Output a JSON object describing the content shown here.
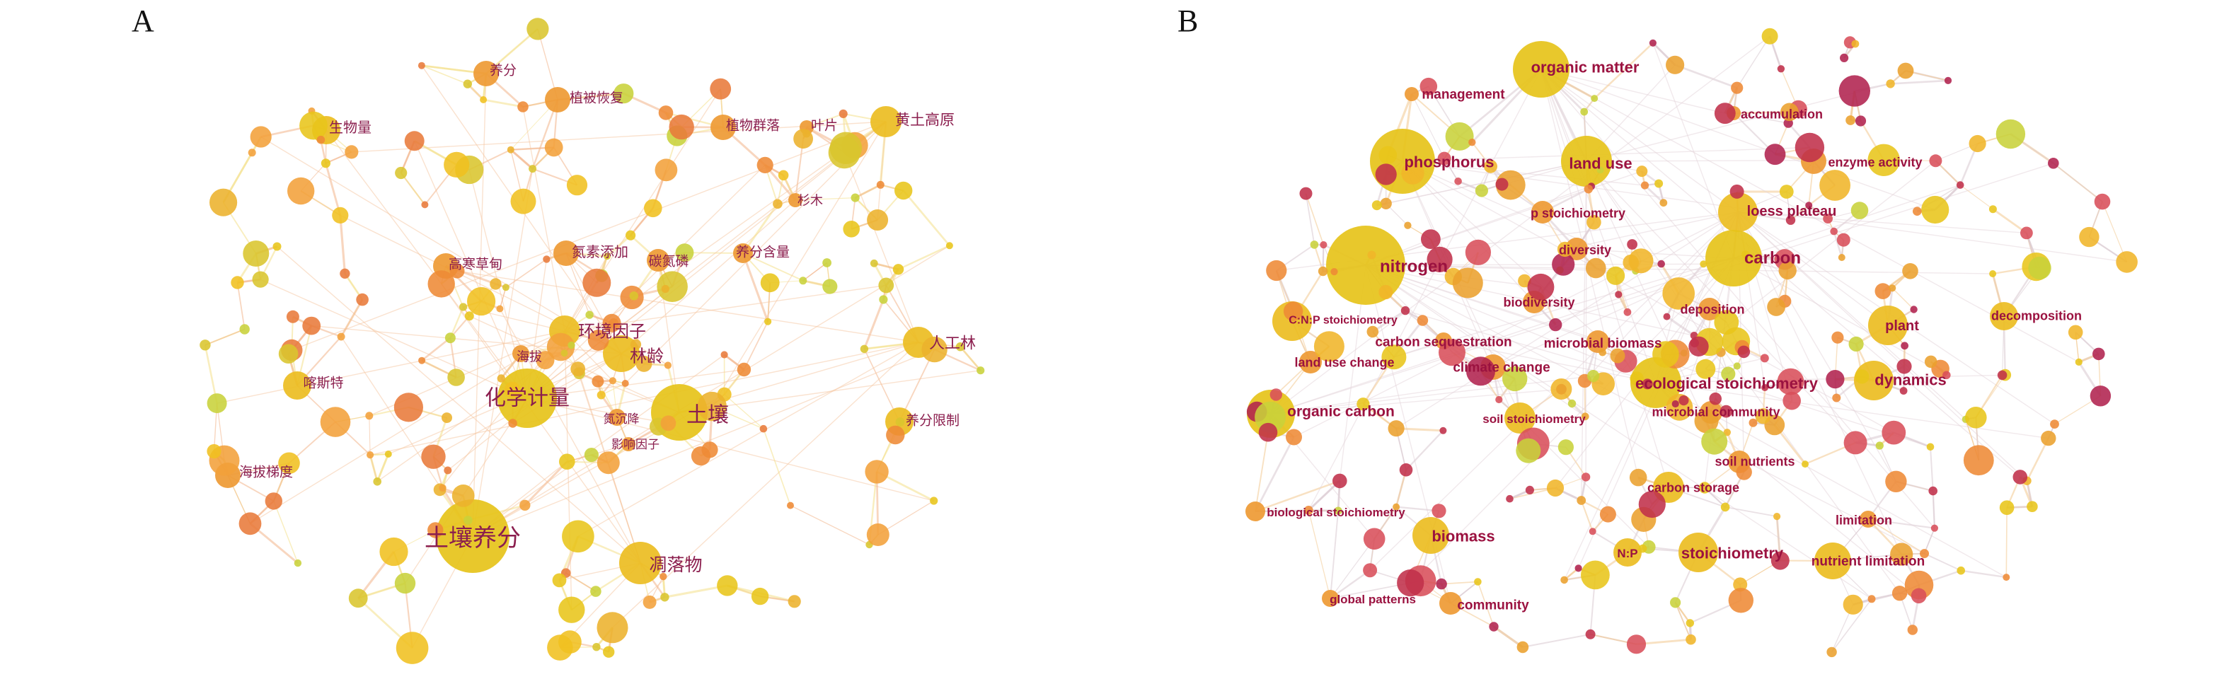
{
  "panels": [
    {
      "letter": "A",
      "keywords": [
        {
          "id": "tr",
          "text": "土壤养分"
        },
        {
          "id": "hx",
          "text": "化学计量"
        },
        {
          "id": "tu",
          "text": "土壤"
        },
        {
          "id": "dl",
          "text": "凋落物"
        },
        {
          "id": "hj",
          "text": "环境因子"
        },
        {
          "id": "ll",
          "text": "林龄"
        },
        {
          "id": "rg",
          "text": "人工林"
        },
        {
          "id": "hl",
          "text": "黄土高原"
        },
        {
          "id": "sw",
          "text": "生物量"
        },
        {
          "id": "yf",
          "text": "养分"
        },
        {
          "id": "zb",
          "text": "植被恢复"
        },
        {
          "id": "zw",
          "text": "植物群落"
        },
        {
          "id": "yp",
          "text": "叶片"
        },
        {
          "id": "sm",
          "text": "杉木"
        },
        {
          "id": "gh",
          "text": "高寒草甸"
        },
        {
          "id": "dt",
          "text": "氮素添加"
        },
        {
          "id": "td",
          "text": "碳氮磷"
        },
        {
          "id": "yh",
          "text": "养分含量"
        },
        {
          "id": "hb",
          "text": "海拔"
        },
        {
          "id": "ks",
          "text": "喀斯特"
        },
        {
          "id": "dc",
          "text": "氮沉降"
        },
        {
          "id": "yx",
          "text": "影响因子"
        },
        {
          "id": "yz",
          "text": "养分限制"
        },
        {
          "id": "hd",
          "text": "海拔梯度"
        }
      ]
    },
    {
      "letter": "B",
      "keywords": [
        {
          "id": "om",
          "text": "organic matter"
        },
        {
          "id": "mg",
          "text": "management"
        },
        {
          "id": "ac",
          "text": "accumulation"
        },
        {
          "id": "ph",
          "text": "phosphorus"
        },
        {
          "id": "lu",
          "text": "land use"
        },
        {
          "id": "ea",
          "text": "enzyme activity"
        },
        {
          "id": "ps",
          "text": "p stoichiometry"
        },
        {
          "id": "lp",
          "text": "loess plateau"
        },
        {
          "id": "ni",
          "text": "nitrogen"
        },
        {
          "id": "dv",
          "text": "diversity"
        },
        {
          "id": "ca",
          "text": "carbon"
        },
        {
          "id": "bd",
          "text": "biodiversity"
        },
        {
          "id": "dp",
          "text": "deposition"
        },
        {
          "id": "cn",
          "text": "C:N:P stoichiometry"
        },
        {
          "id": "dc",
          "text": "decomposition"
        },
        {
          "id": "pl",
          "text": "plant"
        },
        {
          "id": "cs",
          "text": "carbon sequestration"
        },
        {
          "id": "mb",
          "text": "microbial biomass"
        },
        {
          "id": "lc",
          "text": "land use change"
        },
        {
          "id": "cc",
          "text": "climate change"
        },
        {
          "id": "es",
          "text": "ecological stoichiometry"
        },
        {
          "id": "dy",
          "text": "dynamics"
        },
        {
          "id": "oc",
          "text": "organic carbon"
        },
        {
          "id": "ss",
          "text": "soil stoichiometry"
        },
        {
          "id": "mc",
          "text": "microbial community"
        },
        {
          "id": "sn",
          "text": "soil nutrients"
        },
        {
          "id": "cst",
          "text": "carbon storage"
        },
        {
          "id": "bs",
          "text": "biological stoichiometry"
        },
        {
          "id": "li",
          "text": "limitation"
        },
        {
          "id": "bm",
          "text": "biomass"
        },
        {
          "id": "np",
          "text": "N:P"
        },
        {
          "id": "st",
          "text": "stoichiometry"
        },
        {
          "id": "nl",
          "text": "nutrient limitation"
        },
        {
          "id": "gp",
          "text": "global patterns"
        },
        {
          "id": "co",
          "text": "community"
        }
      ]
    }
  ]
}
